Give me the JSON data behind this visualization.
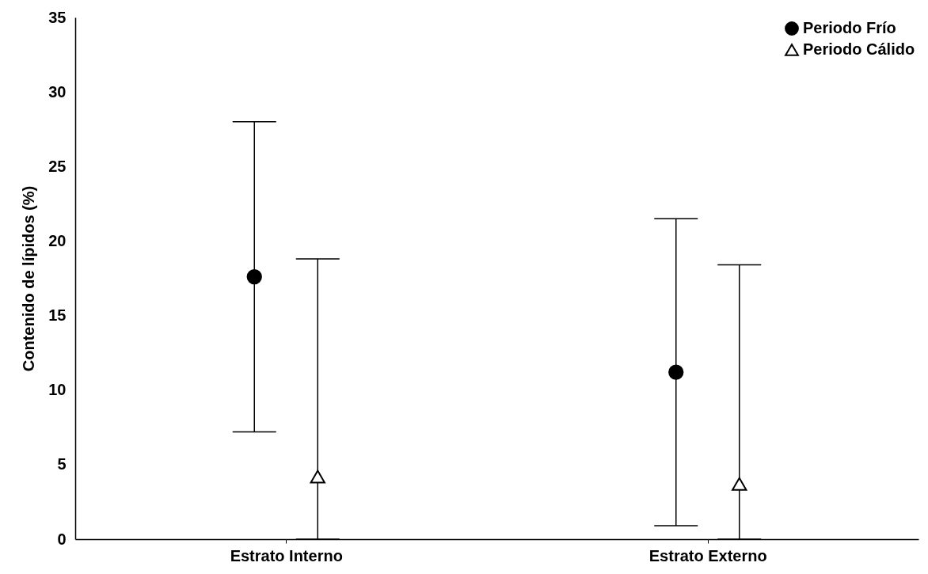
{
  "chart_data": {
    "type": "scatter",
    "ylabel": "Contenido de lípidos (%)",
    "categories": [
      "Estrato Interno",
      "Estrato Externo"
    ],
    "ylim": [
      0,
      35
    ],
    "yticks": [
      0,
      5,
      10,
      15,
      20,
      25,
      30,
      35
    ],
    "grid": false,
    "legend": "top right",
    "series": [
      {
        "name": "Periodo Frío",
        "color": "#000000",
        "marker": "circle",
        "values": [
          17.6,
          11.2
        ],
        "errors": [
          [
            7.2,
            28.0
          ],
          [
            0.9,
            21.5
          ]
        ]
      },
      {
        "name": "Periodo Cálido",
        "color": "#ffffff",
        "marker": "triangle",
        "values": [
          4.2,
          3.7
        ],
        "errors": [
          [
            0,
            18.8
          ],
          [
            0,
            18.4
          ]
        ]
      }
    ]
  }
}
